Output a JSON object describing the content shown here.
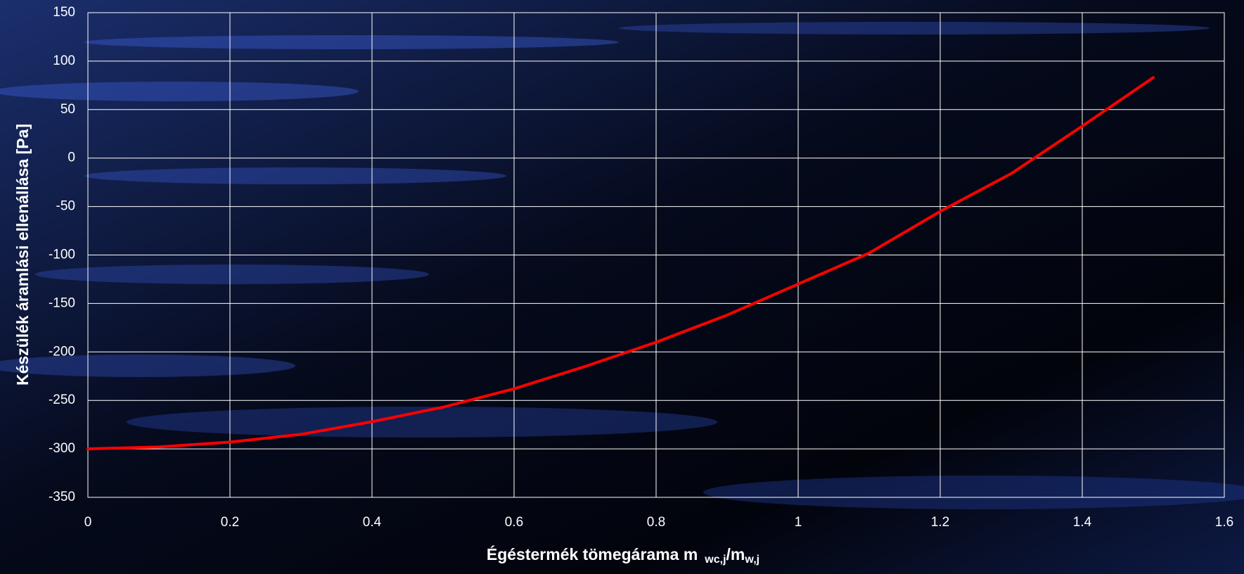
{
  "chart_data": {
    "type": "line",
    "x_label_parts": [
      "Égéstermék tömegárama m",
      "wc,j",
      "/m",
      "w,j"
    ],
    "y_label": "Készülék áramlási ellenállása [Pa]",
    "x": [
      0,
      0.1,
      0.2,
      0.3,
      0.4,
      0.5,
      0.6,
      0.7,
      0.8,
      0.9,
      1.0,
      1.1,
      1.2,
      1.3,
      1.4,
      1.5
    ],
    "series": [
      {
        "color": "#ff0000",
        "values": [
          -300,
          -298,
          -293,
          -285,
          -272,
          -257,
          -238,
          -215,
          -190,
          -162,
          -130,
          -98,
          -55,
          -16,
          33,
          83
        ]
      }
    ],
    "xlim": [
      0,
      1.6
    ],
    "xticks": [
      0,
      0.2,
      0.4,
      0.6,
      0.8,
      1,
      1.2,
      1.4,
      1.6
    ],
    "ylim": [
      -350,
      150
    ],
    "yticks": [
      -350,
      -300,
      -250,
      -200,
      -150,
      -100,
      -50,
      0,
      50,
      100,
      150
    ],
    "grid": true
  }
}
